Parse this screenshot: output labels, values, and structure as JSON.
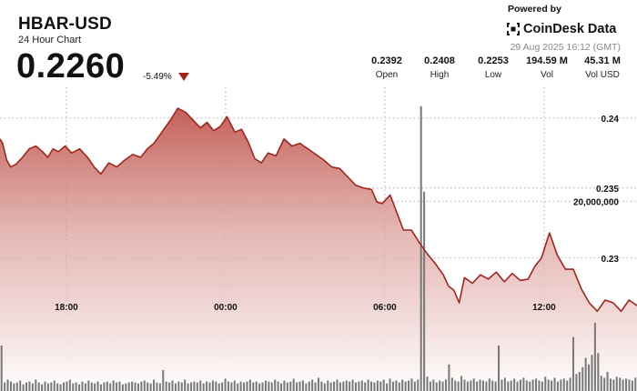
{
  "header": {
    "title": "HBAR-USD",
    "subtitle": "24 Hour Chart",
    "price": "0.2260",
    "change": "-5.49%"
  },
  "branding": {
    "powered_by": "Powered by",
    "name": "CoinDesk Data",
    "timestamp": "29 Aug 2025 16:12 (GMT)"
  },
  "stats": [
    {
      "value": "0.2392",
      "label": "Open"
    },
    {
      "value": "0.2408",
      "label": "High"
    },
    {
      "value": "0.2253",
      "label": "Low"
    },
    {
      "value": "194.59 M",
      "label": "Vol"
    },
    {
      "value": "45.31 M",
      "label": "Vol USD"
    }
  ],
  "colors": {
    "line": "#a3241b",
    "area_top": "#c0574f",
    "down": "#a3241b",
    "volume": "#7a7a7a"
  },
  "chart_data": {
    "type": "area",
    "title": "HBAR-USD",
    "x_tick_labels": [
      "18:00",
      "00:00",
      "06:00",
      "12:00"
    ],
    "x_tick_hours": [
      2.5,
      8.5,
      14.5,
      20.5
    ],
    "x_range_hours": [
      0,
      24
    ],
    "y_tick_labels": [
      "0.24",
      "0.235",
      "0.23"
    ],
    "y_tick_values": [
      0.24,
      0.235,
      0.23
    ],
    "y_range": [
      0.2205,
      0.2422
    ],
    "volume_tick_label": "20,000,000",
    "volume_tick_value": 20000000,
    "volume_range": [
      0,
      32000000
    ],
    "price_series": {
      "x": [
        0,
        0.1,
        0.25,
        0.4,
        0.6,
        0.85,
        1.1,
        1.35,
        1.6,
        1.8,
        2.0,
        2.2,
        2.45,
        2.7,
        3.0,
        3.3,
        3.55,
        3.8,
        4.1,
        4.4,
        4.7,
        5.0,
        5.3,
        5.55,
        5.8,
        6.1,
        6.4,
        6.7,
        7.0,
        7.3,
        7.55,
        7.8,
        8.05,
        8.3,
        8.55,
        8.85,
        9.1,
        9.35,
        9.6,
        9.85,
        10.1,
        10.4,
        10.7,
        11.0,
        11.3,
        11.6,
        11.9,
        12.2,
        12.5,
        12.8,
        13.1,
        13.4,
        13.7,
        14.0,
        14.2,
        14.4,
        14.7,
        14.9,
        15.2,
        15.5,
        15.8,
        16.1,
        16.4,
        16.7,
        16.9,
        17.1,
        17.3,
        17.5,
        17.8,
        18.1,
        18.4,
        18.7,
        19.0,
        19.3,
        19.6,
        19.9,
        20.15,
        20.4,
        20.7,
        21.0,
        21.3,
        21.6,
        21.9,
        22.2,
        22.5,
        22.8,
        23.1,
        23.4,
        23.7,
        24.0
      ],
      "y": [
        0.2385,
        0.2382,
        0.237,
        0.2365,
        0.2367,
        0.2372,
        0.2378,
        0.238,
        0.2376,
        0.2372,
        0.2378,
        0.2376,
        0.238,
        0.2375,
        0.2378,
        0.2372,
        0.2365,
        0.236,
        0.2368,
        0.2365,
        0.237,
        0.2374,
        0.2372,
        0.2378,
        0.2382,
        0.239,
        0.2398,
        0.2407,
        0.2404,
        0.2398,
        0.2393,
        0.2397,
        0.2391,
        0.2394,
        0.2401,
        0.239,
        0.2392,
        0.2383,
        0.2371,
        0.2368,
        0.2375,
        0.2373,
        0.2385,
        0.238,
        0.2382,
        0.2378,
        0.2374,
        0.237,
        0.2365,
        0.2364,
        0.2358,
        0.2352,
        0.235,
        0.2349,
        0.234,
        0.2339,
        0.2345,
        0.2335,
        0.232,
        0.232,
        0.2311,
        0.2303,
        0.2296,
        0.2288,
        0.228,
        0.2277,
        0.2268,
        0.2286,
        0.2282,
        0.2288,
        0.2285,
        0.229,
        0.2283,
        0.2289,
        0.2284,
        0.2285,
        0.2294,
        0.23,
        0.2318,
        0.2302,
        0.2292,
        0.2292,
        0.2278,
        0.2268,
        0.2262,
        0.227,
        0.2268,
        0.2262,
        0.227,
        0.2266
      ]
    },
    "volume_series": {
      "values": [
        4.8,
        0.9,
        1.2,
        1.0,
        0.8,
        0.9,
        1.1,
        0.7,
        0.9,
        1.0,
        0.8,
        1.2,
        0.9,
        0.7,
        1.0,
        0.8,
        0.9,
        1.1,
        0.8,
        0.7,
        0.9,
        1.0,
        1.2,
        0.8,
        0.9,
        0.7,
        1.0,
        0.8,
        1.1,
        0.9,
        0.8,
        1.0,
        0.7,
        0.9,
        1.0,
        0.8,
        1.1,
        0.9,
        1.0,
        0.7,
        0.8,
        0.9,
        1.0,
        0.9,
        0.8,
        1.0,
        1.1,
        0.9,
        0.8,
        1.2,
        0.9,
        0.8,
        2.2,
        1.0,
        0.9,
        1.1,
        0.8,
        1.0,
        0.9,
        1.2,
        0.8,
        0.9,
        1.0,
        0.9,
        1.1,
        0.8,
        1.0,
        0.9,
        1.1,
        1.0,
        0.8,
        0.9,
        1.3,
        1.0,
        0.9,
        1.1,
        0.8,
        1.0,
        0.9,
        1.0,
        1.2,
        0.9,
        1.0,
        0.8,
        0.9,
        1.1,
        1.0,
        0.9,
        1.2,
        1.0,
        0.8,
        1.1,
        0.9,
        1.0,
        1.3,
        0.9,
        1.0,
        1.1,
        0.8,
        1.0,
        1.2,
        0.9,
        1.4,
        1.0,
        0.8,
        1.1,
        0.9,
        1.0,
        1.2,
        0.9,
        1.0,
        1.1,
        1.0,
        1.2,
        0.9,
        1.0,
        1.1,
        0.9,
        1.2,
        1.0,
        0.9,
        1.1,
        1.0,
        1.2,
        0.8,
        1.3,
        1.0,
        1.1,
        0.9,
        1.2,
        1.0,
        1.1,
        1.3,
        1.0,
        1.2,
        30.0,
        21.0,
        1.5,
        1.0,
        1.2,
        0.9,
        1.1,
        1.0,
        1.2,
        2.8,
        1.4,
        1.1,
        1.0,
        1.6,
        1.2,
        1.0,
        1.1,
        1.3,
        1.0,
        1.2,
        1.1,
        1.0,
        1.3,
        1.1,
        1.0,
        4.8,
        1.2,
        1.4,
        1.0,
        1.1,
        1.3,
        1.0,
        1.2,
        1.4,
        1.1,
        1.0,
        1.2,
        1.3,
        1.1,
        1.0,
        1.5,
        1.2,
        1.1,
        1.4,
        1.0,
        1.2,
        1.3,
        1.1,
        1.4,
        5.7,
        1.8,
        2.0,
        2.5,
        3.5,
        2.8,
        3.8,
        7.2,
        4.0,
        1.6,
        1.4,
        2.0,
        1.3,
        1.2,
        1.5,
        1.4,
        1.2,
        1.3,
        1.2,
        1.1,
        1.4
      ]
    }
  }
}
